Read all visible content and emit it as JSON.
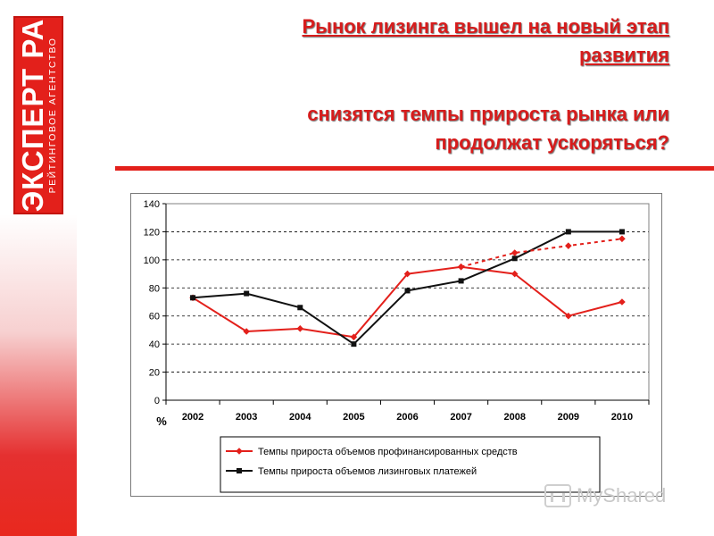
{
  "logo": {
    "main": "ЭКСПЕРТ РА",
    "sub": "РЕЙТИНГОВОЕ АГЕНТСТВО"
  },
  "slide": {
    "title_line1": "Рынок лизинга вышел на новый этап",
    "title_line2": "развития",
    "subtitle_line1": "снизятся темпы прироста рынка или",
    "subtitle_line2": "продолжат ускоряться?"
  },
  "watermark": {
    "text": "MyShared"
  },
  "colors": {
    "accent": "#e3201b",
    "series_red": "#e3201b",
    "series_black": "#111111"
  },
  "chart_data": {
    "type": "line",
    "x": [
      "2002",
      "2003",
      "2004",
      "2005",
      "2006",
      "2007",
      "2008",
      "2009",
      "2010"
    ],
    "ylabel": "%",
    "ylim": [
      0,
      140
    ],
    "yticks": [
      0,
      20,
      40,
      60,
      80,
      100,
      120,
      140
    ],
    "grid": "horizontal dashed",
    "legend_position": "bottom",
    "series": [
      {
        "name": "Темпы прироста объемов профинансированных средств",
        "color": "#e3201b",
        "marker": "diamond",
        "values": [
          73,
          49,
          51,
          45,
          90,
          95,
          90,
          60,
          70
        ]
      },
      {
        "name": "Темпы прироста объемов лизинговых платежей",
        "color": "#111111",
        "marker": "square",
        "values": [
          73,
          76,
          66,
          40,
          78,
          85,
          101,
          120,
          120
        ]
      },
      {
        "name": "",
        "color": "#e3201b",
        "marker": "diamond",
        "dashed": true,
        "x": [
          "2007",
          "2008",
          "2009",
          "2010"
        ],
        "values": [
          95,
          105,
          110,
          115
        ]
      }
    ]
  }
}
